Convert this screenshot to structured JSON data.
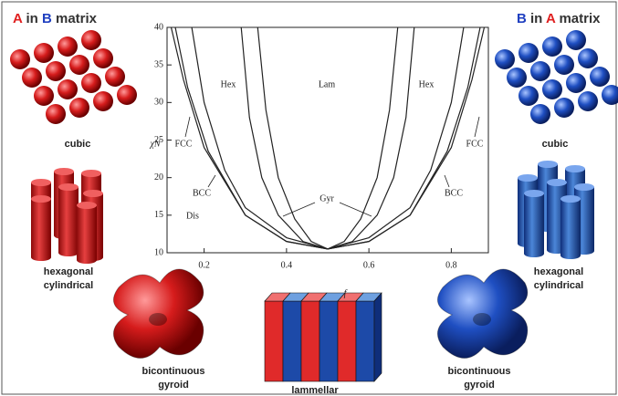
{
  "chart_data": {
    "type": "line",
    "xlabel": "f",
    "ylabel": "χN",
    "xlim": [
      0.11,
      0.89
    ],
    "ylim": [
      10,
      40
    ],
    "xticks": [
      0.2,
      0.4,
      0.6,
      0.8
    ],
    "yticks": [
      10,
      15,
      20,
      25,
      30,
      35,
      40
    ],
    "series": [
      {
        "color": "#222222",
        "x": [
          0.12,
          0.15,
          0.2,
          0.3,
          0.4,
          0.5,
          0.6,
          0.7,
          0.8,
          0.85,
          0.88
        ],
        "values": [
          40,
          33,
          24,
          15,
          11.5,
          10.5,
          11.5,
          15,
          24,
          33,
          40
        ]
      },
      {
        "color": "#222222",
        "x": [
          0.13,
          0.16,
          0.21,
          0.3,
          0.4,
          0.5,
          0.6,
          0.7,
          0.79,
          0.84,
          0.87
        ],
        "values": [
          40,
          32,
          23.5,
          15,
          11.5,
          10.5,
          11.5,
          15,
          23.5,
          32,
          40
        ]
      },
      {
        "color": "#222222",
        "x": [
          0.17,
          0.2,
          0.25,
          0.3,
          0.4,
          0.5,
          0.6,
          0.7,
          0.75,
          0.8,
          0.83
        ],
        "values": [
          40,
          30,
          21,
          16,
          12,
          10.5,
          12,
          16,
          21,
          30,
          40
        ]
      },
      {
        "color": "#222222",
        "x": [
          0.29,
          0.31,
          0.34,
          0.38,
          0.44,
          0.5,
          0.56,
          0.62,
          0.66,
          0.69,
          0.71
        ],
        "values": [
          40,
          28,
          20,
          15,
          11.5,
          10.5,
          11.5,
          15,
          20,
          28,
          40
        ]
      },
      {
        "color": "#222222",
        "x": [
          0.33,
          0.35,
          0.38,
          0.42,
          0.46,
          0.5,
          0.54,
          0.58,
          0.62,
          0.65,
          0.67
        ],
        "values": [
          40,
          29,
          20,
          14.5,
          11.5,
          10.5,
          11.5,
          14.5,
          20,
          29,
          40
        ]
      }
    ],
    "annotations": [
      "Hex",
      "Lam",
      "Hex",
      "FCC",
      "FCC",
      "BCC",
      "BCC",
      "Dis",
      "Gyr"
    ]
  },
  "left_title": [
    "A",
    "in",
    "B",
    "matrix"
  ],
  "right_title": [
    "B",
    "in",
    "A",
    "matrix"
  ],
  "left_labels": [
    "cubic",
    "hexagonal",
    "cylindrical",
    "bicontinuous",
    "gyroid"
  ],
  "right_labels": [
    "cubic",
    "hexagonal",
    "cylindrical",
    "bicontinuous",
    "gyroid"
  ],
  "center_label": "lammellar"
}
